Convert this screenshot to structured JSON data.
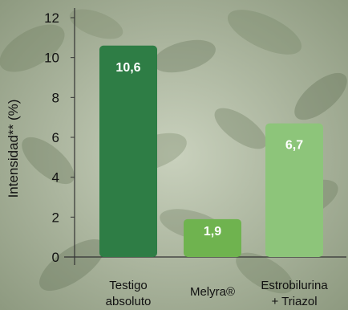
{
  "chart_data": {
    "type": "bar",
    "categories": [
      [
        "Testigo",
        "absoluto"
      ],
      [
        "Melyra®"
      ],
      [
        "Estrobilurina",
        "+ Triazol"
      ]
    ],
    "values": [
      10.6,
      1.9,
      6.7
    ],
    "data_labels": [
      "10,6",
      "1,9",
      "6,7"
    ],
    "bar_colors": [
      "#2e7d45",
      "#6fb34f",
      "#8dc57a"
    ],
    "ylabel": "Intensidad** (%)",
    "ylim": [
      0,
      12
    ],
    "yticks": [
      0,
      2,
      4,
      6,
      8,
      10,
      12
    ],
    "grid": false,
    "background": "foliage photo (plants), faded"
  }
}
